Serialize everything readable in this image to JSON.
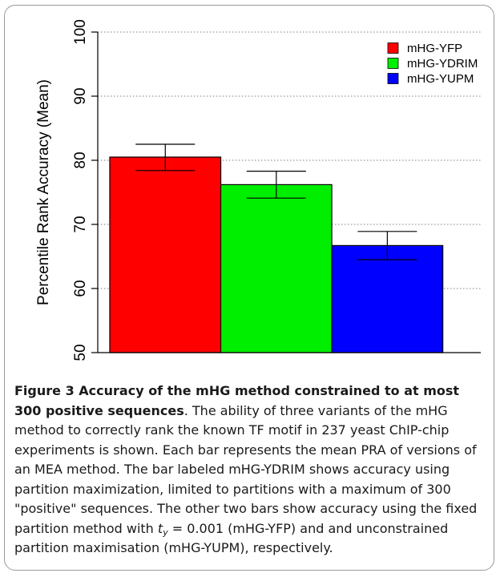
{
  "figure": {
    "caption_bold": "Figure 3 Accuracy of the mHG method constrained to at most 300 positive sequences",
    "caption_part1": ". The ability of three variants of the mHG method to correctly rank the known TF motif in 237 yeast ChIP-chip experiments is shown. Each bar represents the mean PRA of versions of an MEA method. The bar labeled mHG-YDRIM shows accuracy using partition maximization, limited to partitions with a maximum of 300 \"positive\" sequences. The other two bars show accuracy using the fixed partition method with ",
    "caption_var": "t",
    "caption_sub": "y",
    "caption_part2": " = 0.001 (mHG-YFP) and and unconstrained partition maximisation (mHG-YUPM), respectively."
  },
  "chart_data": {
    "type": "bar",
    "title": "",
    "xlabel": "",
    "ylabel": "Percentile Rank Accuracy (Mean)",
    "ylim": [
      50,
      100
    ],
    "yticks": [
      50,
      60,
      70,
      80,
      90,
      100
    ],
    "categories": [
      "mHG-YFP",
      "mHG-YDRIM",
      "mHG-YUPM"
    ],
    "values": [
      80.5,
      76.2,
      66.7
    ],
    "error_low": [
      78.4,
      74.1,
      64.5
    ],
    "error_high": [
      82.5,
      78.3,
      68.9
    ],
    "colors": [
      "#ff0000",
      "#00ee00",
      "#0000ff"
    ],
    "grid": "horizontal dotted",
    "legend": {
      "placement": "top-right",
      "entries": [
        "mHG-YFP",
        "mHG-YDRIM",
        "mHG-YUPM"
      ]
    }
  }
}
